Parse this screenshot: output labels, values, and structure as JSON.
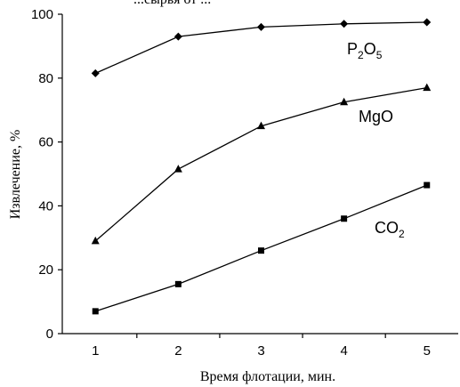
{
  "top_fragment": "...сырья от ...",
  "chart_data": {
    "type": "line",
    "xlabel": "Время флотации, мин.",
    "ylabel": "Извлечение, %",
    "xlim": [
      0.6,
      5.4
    ],
    "ylim": [
      0,
      100
    ],
    "x_ticks": [
      "1",
      "2",
      "3",
      "4",
      "5"
    ],
    "y_ticks": [
      "0",
      "20",
      "40",
      "60",
      "80",
      "100"
    ],
    "grid": false,
    "legend": "inline labels near line ends",
    "x": [
      1,
      2,
      3,
      4,
      5
    ],
    "series": [
      {
        "name": "P2O5",
        "label_main": "P",
        "label_sub1": "2",
        "label_mid": "O",
        "label_sub2": "5",
        "marker": "diamond",
        "values": [
          81.5,
          93,
          96,
          97,
          97.5
        ]
      },
      {
        "name": "MgO",
        "label_main": "MgO",
        "marker": "triangle",
        "values": [
          29,
          51.5,
          65,
          72.5,
          77
        ]
      },
      {
        "name": "CO2",
        "label_main": "CO",
        "label_sub1": "2",
        "marker": "square",
        "values": [
          7,
          15.5,
          26,
          36,
          46.5
        ]
      }
    ]
  }
}
